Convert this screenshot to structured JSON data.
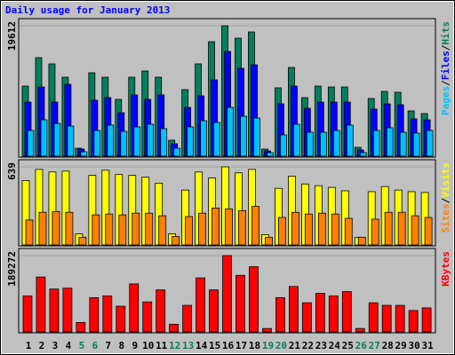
{
  "title": "Daily usage for January 2013",
  "legend_separator": "/",
  "chart_data": [
    {
      "type": "bar",
      "ylim": [
        0,
        19612
      ],
      "yticks": [
        19612
      ],
      "series": [
        {
          "name": "Pages",
          "color": "#00c0ff",
          "values": [
            3869,
            5470,
            4936,
            4536,
            667,
            3869,
            4670,
            3736,
            4403,
            4803,
            4136,
            1200,
            4403,
            5337,
            5070,
            7338,
            6004,
            5737,
            534,
            3202,
            4803,
            3602,
            3602,
            3869,
            4670,
            534,
            3869,
            4269,
            3602,
            3469,
            3869
          ]
        },
        {
          "name": "Files",
          "color": "#0000ff",
          "values": [
            8138,
            10406,
            8138,
            10807,
            1067,
            8405,
            8806,
            6537,
            9206,
            8539,
            9206,
            1868,
            7338,
            9072,
            11474,
            15743,
            13208,
            13742,
            800,
            7872,
            10540,
            7205,
            8138,
            8138,
            8138,
            934,
            7071,
            7872,
            7738,
            5604,
            5470
          ]
        },
        {
          "name": "Hits",
          "color": "#00805c",
          "values": [
            10540,
            14810,
            13875,
            11874,
            1200,
            12541,
            11874,
            8539,
            11874,
            12808,
            11874,
            2400,
            10006,
            13875,
            17211,
            19612,
            17744,
            18678,
            1067,
            10273,
            13342,
            8806,
            10540,
            10406,
            10406,
            1334,
            8672,
            9739,
            9606,
            6804,
            6404
          ]
        }
      ]
    },
    {
      "type": "bar",
      "ylim": [
        0,
        639
      ],
      "yticks": [
        639
      ],
      "series": [
        {
          "name": "Sites",
          "color": "#ff8000",
          "values": [
            204,
            267,
            274,
            267,
            63,
            246,
            253,
            246,
            260,
            260,
            239,
            70,
            232,
            260,
            302,
            295,
            281,
            316,
            63,
            225,
            267,
            253,
            260,
            253,
            218,
            63,
            211,
            267,
            267,
            239,
            225
          ]
        },
        {
          "name": "Visits",
          "color": "#ffff00",
          "values": [
            527,
            618,
            597,
            604,
            91,
            569,
            611,
            576,
            569,
            555,
            506,
            91,
            449,
            597,
            548,
            639,
            590,
            618,
            84,
            463,
            562,
            499,
            485,
            471,
            443,
            63,
            436,
            478,
            449,
            436,
            429
          ]
        }
      ]
    },
    {
      "type": "bar",
      "ylim": [
        0,
        189272
      ],
      "yticks": [
        189272
      ],
      "categories": [
        "1",
        "2",
        "3",
        "4",
        "5",
        "6",
        "7",
        "8",
        "9",
        "10",
        "11",
        "12",
        "13",
        "14",
        "15",
        "16",
        "17",
        "18",
        "19",
        "20",
        "21",
        "22",
        "23",
        "24",
        "25",
        "26",
        "27",
        "28",
        "29",
        "30",
        "31"
      ],
      "label_colors": [
        "#000000",
        "#000000",
        "#000000",
        "#000000",
        "#00805c",
        "#00805c",
        "#000000",
        "#000000",
        "#000000",
        "#000000",
        "#000000",
        "#00805c",
        "#00805c",
        "#000000",
        "#000000",
        "#000000",
        "#000000",
        "#000000",
        "#00805c",
        "#00805c",
        "#000000",
        "#000000",
        "#000000",
        "#000000",
        "#000000",
        "#00805c",
        "#00805c",
        "#000000",
        "#000000",
        "#000000",
        "#000000"
      ],
      "series": [
        {
          "name": "KBytes",
          "color": "#ff0000",
          "values": [
            89319,
            136106,
            106333,
            108459,
            23393,
            85066,
            89319,
            63799,
            119092,
            74433,
            104206,
            19140,
            65926,
            133979,
            104206,
            189272,
            140360,
            161625,
            8506,
            85066,
            112712,
            72306,
            95698,
            89319,
            99951,
            8506,
            72306,
            65926,
            65926,
            53166,
            59546
          ]
        }
      ]
    }
  ]
}
